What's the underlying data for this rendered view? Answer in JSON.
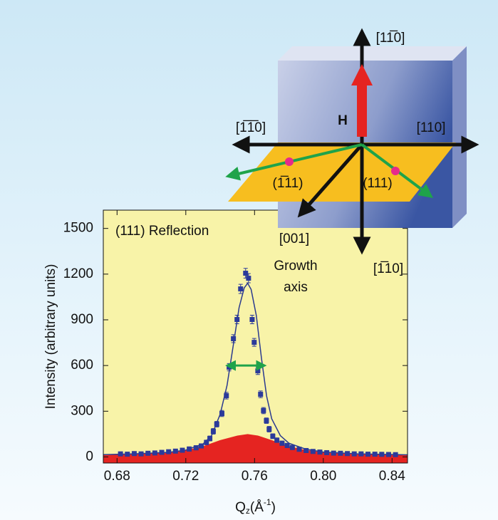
{
  "chart_data": {
    "type": "scatter",
    "annotation": "(111) Reflection",
    "annotation_color": "#e8302a",
    "ylabel": "Intensity (arbitrary units)",
    "xlabel": {
      "main": "Q",
      "sub": "z",
      "unit_open": "(Å",
      "sup": "-1",
      "unit_close": ")"
    },
    "xlim": [
      0.672,
      0.849
    ],
    "ylim": [
      -40,
      1620
    ],
    "xticks": [
      0.68,
      0.72,
      0.76,
      {
        "value": 0.8,
        "label": "0.80"
      },
      0.84
    ],
    "yticks": [
      0,
      300,
      600,
      900,
      1200,
      1500
    ],
    "background": "#f8f3a8",
    "series": [
      {
        "style": "area",
        "color": "#e52421",
        "x": [
          0.672,
          0.69,
          0.7,
          0.71,
          0.72,
          0.73,
          0.74,
          0.75,
          0.756,
          0.762,
          0.77,
          0.78,
          0.79,
          0.8,
          0.82,
          0.849
        ],
        "values": [
          12,
          18,
          25,
          33,
          45,
          70,
          110,
          140,
          150,
          140,
          110,
          70,
          45,
          30,
          18,
          12
        ]
      },
      {
        "style": "line",
        "color": "#2b3a8f",
        "x": [
          0.672,
          0.69,
          0.71,
          0.72,
          0.73,
          0.735,
          0.74,
          0.744,
          0.748,
          0.751,
          0.754,
          0.756,
          0.758,
          0.761,
          0.764,
          0.767,
          0.77,
          0.775,
          0.78,
          0.79,
          0.8,
          0.82,
          0.849
        ],
        "values": [
          15,
          20,
          30,
          45,
          85,
          140,
          280,
          470,
          760,
          980,
          1110,
          1140,
          1100,
          930,
          650,
          400,
          250,
          140,
          90,
          50,
          32,
          20,
          14
        ]
      },
      {
        "style": "points",
        "color": "#2b3a9a",
        "x": [
          0.682,
          0.686,
          0.69,
          0.694,
          0.698,
          0.702,
          0.706,
          0.71,
          0.714,
          0.718,
          0.722,
          0.726,
          0.729,
          0.732,
          0.734,
          0.736,
          0.738,
          0.741,
          0.7436,
          0.7452,
          0.7477,
          0.7498,
          0.7519,
          0.7548,
          0.7565,
          0.7586,
          0.7598,
          0.7619,
          0.7635,
          0.7652,
          0.7669,
          0.7685,
          0.7706,
          0.773,
          0.776,
          0.779,
          0.782,
          0.786,
          0.79,
          0.794,
          0.798,
          0.802,
          0.806,
          0.81,
          0.814,
          0.818,
          0.822,
          0.826,
          0.83,
          0.834,
          0.838,
          0.842
        ],
        "values": [
          20,
          18,
          22,
          20,
          24,
          26,
          30,
          34,
          38,
          44,
          52,
          60,
          72,
          95,
          121,
          168,
          215,
          285,
          402,
          589,
          776,
          902,
          1103,
          1206,
          1173,
          902,
          752,
          565,
          411,
          304,
          238,
          182,
          136,
          110,
          90,
          75,
          62,
          50,
          42,
          36,
          32,
          28,
          25,
          24,
          22,
          20,
          20,
          18,
          18,
          17,
          16,
          15
        ],
        "errors": [
          12,
          12,
          12,
          12,
          12,
          12,
          12,
          12,
          12,
          12,
          14,
          14,
          14,
          15,
          16,
          18,
          18,
          20,
          22,
          24,
          26,
          28,
          30,
          32,
          30,
          28,
          26,
          24,
          22,
          20,
          18,
          18,
          16,
          15,
          14,
          14,
          14,
          12,
          12,
          12,
          12,
          12,
          12,
          12,
          12,
          12,
          12,
          12,
          12,
          12,
          12,
          12
        ]
      }
    ],
    "fwhm_arrow": {
      "x": [
        0.746,
        0.764
      ],
      "y": 600,
      "color": "#1fa34a"
    }
  },
  "diagram": {
    "up": "[11̅0]",
    "left": "[1̅1̅0]",
    "right": "[110]",
    "down": "[1̅10]",
    "field": "H",
    "plane_left": "(1̅11)",
    "plane_right": "(111)",
    "growth_index": "[001]",
    "growth_1": "Growth",
    "growth_2": "axis"
  }
}
